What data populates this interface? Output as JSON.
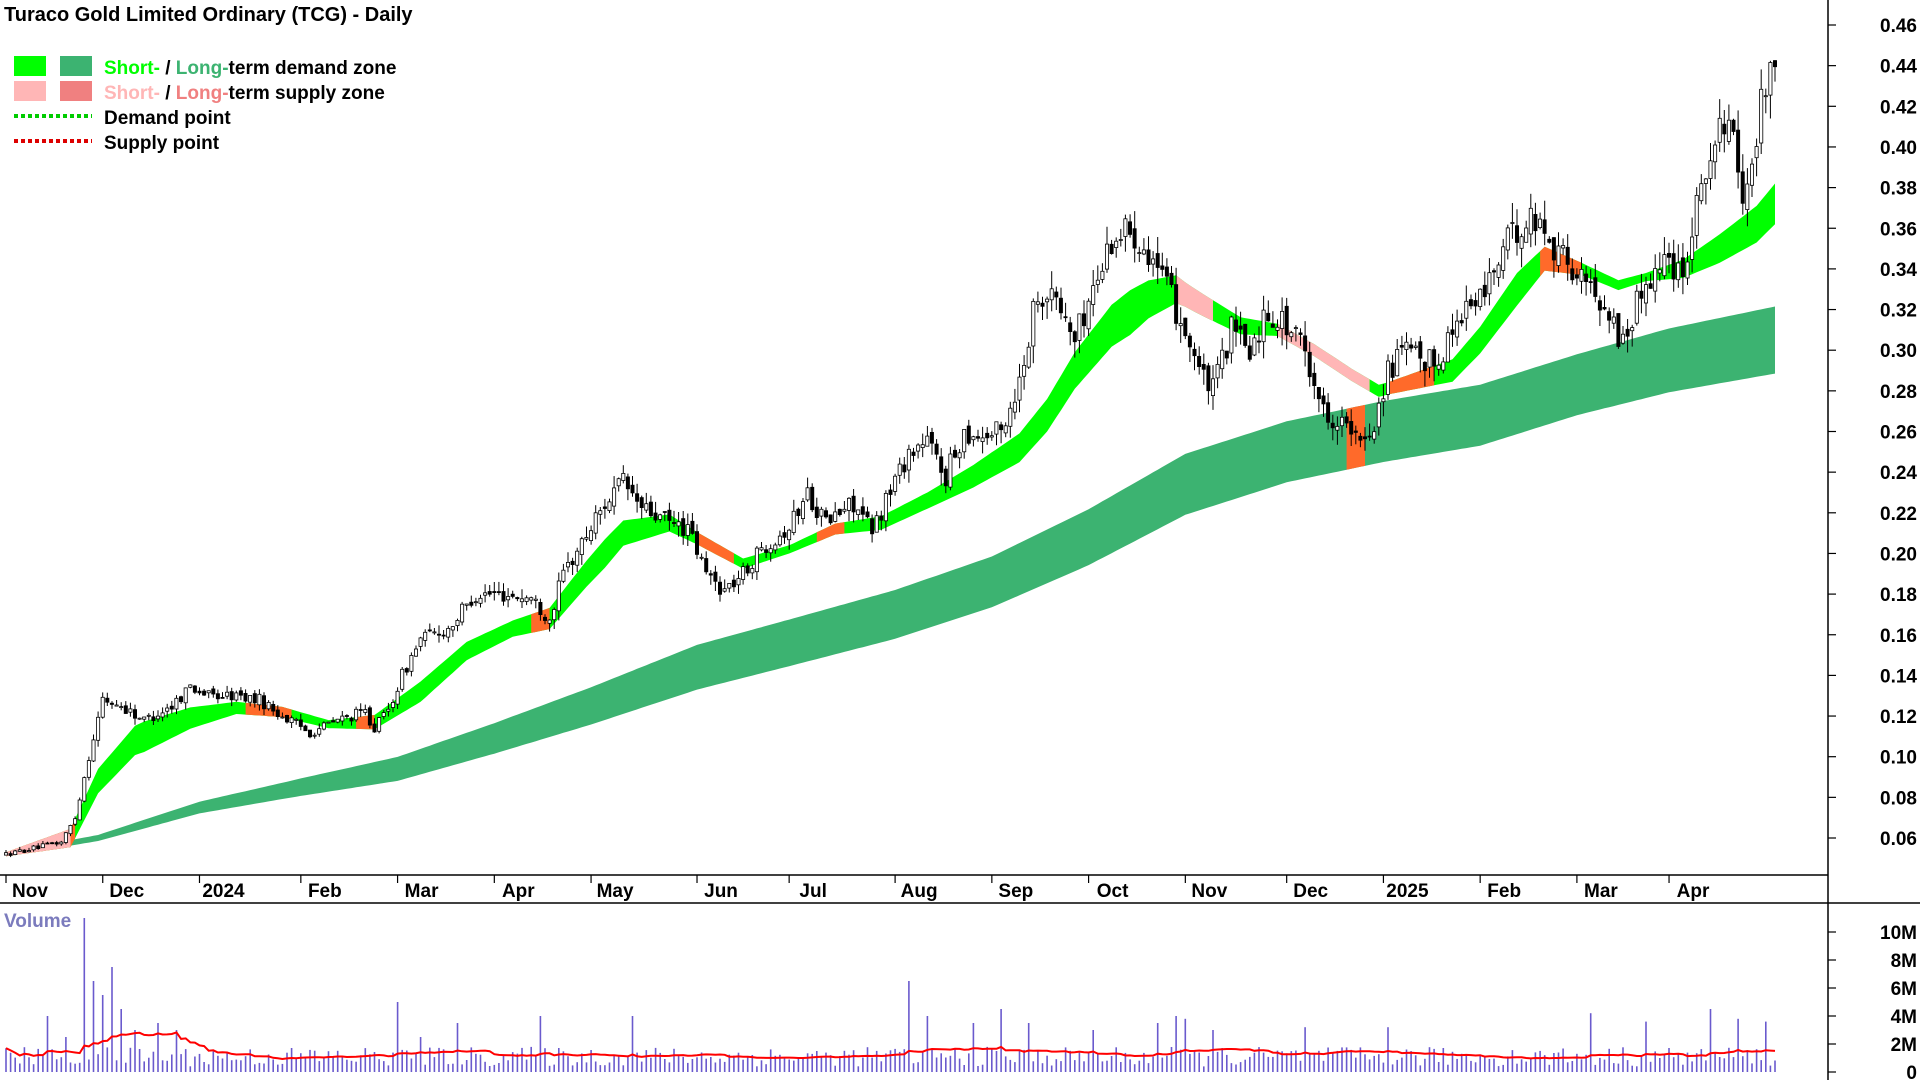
{
  "chart_data": {
    "type": "candlestick",
    "title": "Turaco Gold Limited Ordinary (TCG) - Daily",
    "price_axis": {
      "ylim": [
        0.04,
        0.47
      ],
      "ticks": [
        0.06,
        0.08,
        0.1,
        0.12,
        0.14,
        0.16,
        0.18,
        0.2,
        0.22,
        0.24,
        0.26,
        0.28,
        0.3,
        0.32,
        0.34,
        0.36,
        0.38,
        0.4,
        0.42,
        0.44,
        0.46
      ],
      "tick_labels": [
        "0.06",
        "0.08",
        "0.10",
        "0.12",
        "0.14",
        "0.16",
        "0.18",
        "0.20",
        "0.22",
        "0.24",
        "0.26",
        "0.28",
        "0.30",
        "0.32",
        "0.34",
        "0.36",
        "0.38",
        "0.40",
        "0.42",
        "0.44",
        "0.46"
      ]
    },
    "x_axis": {
      "months": [
        "Nov",
        "Dec",
        "2024",
        "Feb",
        "Mar",
        "Apr",
        "May",
        "Jun",
        "Jul",
        "Aug",
        "Sep",
        "Oct",
        "Nov",
        "Dec",
        "2025",
        "Feb",
        "Mar",
        "Apr"
      ],
      "month_start_index": [
        0,
        21,
        42,
        64,
        85,
        106,
        127,
        150,
        170,
        193,
        214,
        235,
        256,
        278,
        299,
        320,
        341,
        361
      ]
    },
    "legend": {
      "position": "top-left",
      "items": [
        {
          "prefix": "Short-",
          "sep": " / ",
          "mid": "Long-",
          "suffix": "term demand zone",
          "swatch_short": "#00ff00",
          "swatch_long": "#3cb371"
        },
        {
          "prefix": "Short-",
          "sep": " / ",
          "mid": "Long-",
          "suffix": "term supply zone",
          "swatch_short": "#ffb6b6",
          "swatch_long": "#f08080"
        },
        {
          "label": "Demand point",
          "color": "#00cc00"
        },
        {
          "label": "Supply point",
          "color": "#dd0000"
        }
      ]
    },
    "price_keypoints": [
      [
        0,
        0.052
      ],
      [
        6,
        0.055
      ],
      [
        12,
        0.058
      ],
      [
        15,
        0.07
      ],
      [
        18,
        0.1
      ],
      [
        21,
        0.128
      ],
      [
        25,
        0.125
      ],
      [
        30,
        0.118
      ],
      [
        36,
        0.125
      ],
      [
        40,
        0.135
      ],
      [
        44,
        0.13
      ],
      [
        50,
        0.13
      ],
      [
        55,
        0.128
      ],
      [
        60,
        0.12
      ],
      [
        66,
        0.112
      ],
      [
        72,
        0.118
      ],
      [
        78,
        0.122
      ],
      [
        80,
        0.114
      ],
      [
        83,
        0.123
      ],
      [
        86,
        0.14
      ],
      [
        90,
        0.158
      ],
      [
        96,
        0.163
      ],
      [
        102,
        0.18
      ],
      [
        108,
        0.18
      ],
      [
        114,
        0.178
      ],
      [
        118,
        0.168
      ],
      [
        121,
        0.19
      ],
      [
        125,
        0.205
      ],
      [
        130,
        0.225
      ],
      [
        134,
        0.235
      ],
      [
        138,
        0.222
      ],
      [
        144,
        0.215
      ],
      [
        148,
        0.212
      ],
      [
        152,
        0.19
      ],
      [
        156,
        0.182
      ],
      [
        160,
        0.19
      ],
      [
        165,
        0.205
      ],
      [
        170,
        0.213
      ],
      [
        174,
        0.23
      ],
      [
        178,
        0.215
      ],
      [
        184,
        0.225
      ],
      [
        188,
        0.21
      ],
      [
        192,
        0.232
      ],
      [
        196,
        0.25
      ],
      [
        200,
        0.255
      ],
      [
        204,
        0.238
      ],
      [
        208,
        0.26
      ],
      [
        212,
        0.258
      ],
      [
        216,
        0.26
      ],
      [
        220,
        0.285
      ],
      [
        224,
        0.33
      ],
      [
        228,
        0.325
      ],
      [
        232,
        0.305
      ],
      [
        236,
        0.33
      ],
      [
        240,
        0.355
      ],
      [
        244,
        0.36
      ],
      [
        248,
        0.35
      ],
      [
        252,
        0.33
      ],
      [
        256,
        0.31
      ],
      [
        260,
        0.285
      ],
      [
        262,
        0.28
      ],
      [
        266,
        0.31
      ],
      [
        270,
        0.3
      ],
      [
        274,
        0.32
      ],
      [
        278,
        0.312
      ],
      [
        282,
        0.3
      ],
      [
        286,
        0.27
      ],
      [
        290,
        0.265
      ],
      [
        294,
        0.252
      ],
      [
        297,
        0.265
      ],
      [
        300,
        0.29
      ],
      [
        304,
        0.3
      ],
      [
        308,
        0.292
      ],
      [
        312,
        0.3
      ],
      [
        316,
        0.32
      ],
      [
        320,
        0.325
      ],
      [
        324,
        0.345
      ],
      [
        328,
        0.36
      ],
      [
        332,
        0.365
      ],
      [
        336,
        0.352
      ],
      [
        340,
        0.34
      ],
      [
        344,
        0.33
      ],
      [
        348,
        0.32
      ],
      [
        350,
        0.305
      ],
      [
        352,
        0.31
      ],
      [
        356,
        0.335
      ],
      [
        360,
        0.345
      ],
      [
        364,
        0.34
      ],
      [
        368,
        0.385
      ],
      [
        372,
        0.405
      ],
      [
        374,
        0.42
      ],
      [
        376,
        0.38
      ],
      [
        378,
        0.375
      ],
      [
        382,
        0.435
      ],
      [
        384,
        0.445
      ]
    ],
    "n_bars": 385,
    "ema_short_keypoints": [
      [
        0,
        0.052
      ],
      [
        14,
        0.06
      ],
      [
        20,
        0.088
      ],
      [
        28,
        0.108
      ],
      [
        40,
        0.119
      ],
      [
        50,
        0.124
      ],
      [
        60,
        0.122
      ],
      [
        70,
        0.116
      ],
      [
        80,
        0.117
      ],
      [
        90,
        0.132
      ],
      [
        100,
        0.152
      ],
      [
        110,
        0.163
      ],
      [
        118,
        0.168
      ],
      [
        126,
        0.19
      ],
      [
        134,
        0.21
      ],
      [
        144,
        0.215
      ],
      [
        152,
        0.205
      ],
      [
        160,
        0.195
      ],
      [
        170,
        0.202
      ],
      [
        180,
        0.212
      ],
      [
        190,
        0.215
      ],
      [
        200,
        0.226
      ],
      [
        210,
        0.238
      ],
      [
        220,
        0.252
      ],
      [
        226,
        0.268
      ],
      [
        232,
        0.29
      ],
      [
        240,
        0.312
      ],
      [
        248,
        0.325
      ],
      [
        254,
        0.33
      ],
      [
        260,
        0.322
      ],
      [
        268,
        0.312
      ],
      [
        276,
        0.31
      ],
      [
        284,
        0.3
      ],
      [
        292,
        0.288
      ],
      [
        298,
        0.28
      ],
      [
        306,
        0.285
      ],
      [
        314,
        0.29
      ],
      [
        320,
        0.305
      ],
      [
        328,
        0.33
      ],
      [
        334,
        0.345
      ],
      [
        342,
        0.34
      ],
      [
        350,
        0.332
      ],
      [
        356,
        0.336
      ],
      [
        364,
        0.34
      ],
      [
        372,
        0.35
      ],
      [
        380,
        0.362
      ],
      [
        384,
        0.372
      ]
    ],
    "ema_short_width_keypoints": [
      [
        0,
        0.002
      ],
      [
        20,
        0.012
      ],
      [
        30,
        0.015
      ],
      [
        50,
        0.006
      ],
      [
        70,
        0.004
      ],
      [
        90,
        0.01
      ],
      [
        110,
        0.008
      ],
      [
        130,
        0.014
      ],
      [
        150,
        0.006
      ],
      [
        170,
        0.004
      ],
      [
        200,
        0.008
      ],
      [
        226,
        0.016
      ],
      [
        244,
        0.022
      ],
      [
        256,
        0.012
      ],
      [
        276,
        0.006
      ],
      [
        300,
        0.006
      ],
      [
        328,
        0.016
      ],
      [
        342,
        0.006
      ],
      [
        356,
        0.004
      ],
      [
        372,
        0.014
      ],
      [
        384,
        0.02
      ]
    ],
    "ema_long_keypoints": [
      [
        0,
        0.052
      ],
      [
        20,
        0.06
      ],
      [
        42,
        0.075
      ],
      [
        64,
        0.085
      ],
      [
        85,
        0.094
      ],
      [
        106,
        0.109
      ],
      [
        127,
        0.125
      ],
      [
        150,
        0.144
      ],
      [
        170,
        0.156
      ],
      [
        193,
        0.17
      ],
      [
        214,
        0.186
      ],
      [
        235,
        0.208
      ],
      [
        256,
        0.234
      ],
      [
        278,
        0.25
      ],
      [
        299,
        0.26
      ],
      [
        320,
        0.268
      ],
      [
        341,
        0.283
      ],
      [
        361,
        0.295
      ],
      [
        384,
        0.305
      ]
    ],
    "ema_long_width_keypoints": [
      [
        0,
        0.002
      ],
      [
        20,
        0.003
      ],
      [
        60,
        0.008
      ],
      [
        106,
        0.015
      ],
      [
        150,
        0.022
      ],
      [
        214,
        0.025
      ],
      [
        256,
        0.03
      ],
      [
        299,
        0.03
      ],
      [
        341,
        0.03
      ],
      [
        384,
        0.033
      ]
    ],
    "supply_short_ranges": [
      [
        0,
        15
      ],
      [
        52,
        62
      ],
      [
        76,
        80
      ],
      [
        114,
        118
      ],
      [
        150,
        158
      ],
      [
        176,
        182
      ],
      [
        254,
        262
      ],
      [
        300,
        310
      ],
      [
        333,
        342
      ]
    ],
    "supply_long_ranges": [
      [
        291,
        295
      ]
    ],
    "volume": {
      "title": "Volume",
      "ylim": [
        0,
        11000000
      ],
      "ticks": [
        0,
        2000000,
        4000000,
        6000000,
        8000000,
        10000000
      ],
      "tick_labels": [
        "0",
        "2M",
        "4M",
        "6M",
        "8M",
        "10M"
      ],
      "avg_color": "#ff0000",
      "bar_color": "#6a5acd",
      "spikes": [
        [
          9,
          4000000
        ],
        [
          13,
          2500000
        ],
        [
          17,
          11000000
        ],
        [
          19,
          6500000
        ],
        [
          21,
          5500000
        ],
        [
          23,
          7500000
        ],
        [
          25,
          4500000
        ],
        [
          28,
          3000000
        ],
        [
          33,
          3500000
        ],
        [
          37,
          3000000
        ],
        [
          85,
          5000000
        ],
        [
          90,
          2500000
        ],
        [
          98,
          3500000
        ],
        [
          116,
          4000000
        ],
        [
          136,
          4000000
        ],
        [
          196,
          6500000
        ],
        [
          200,
          4000000
        ],
        [
          210,
          3500000
        ],
        [
          216,
          4500000
        ],
        [
          222,
          3500000
        ],
        [
          236,
          3000000
        ],
        [
          250,
          3500000
        ],
        [
          254,
          4000000
        ],
        [
          256,
          3800000
        ],
        [
          262,
          3000000
        ],
        [
          282,
          3200000
        ],
        [
          300,
          3200000
        ],
        [
          344,
          4200000
        ],
        [
          356,
          3600000
        ],
        [
          370,
          4500000
        ],
        [
          376,
          3800000
        ],
        [
          382,
          3600000
        ]
      ]
    }
  }
}
